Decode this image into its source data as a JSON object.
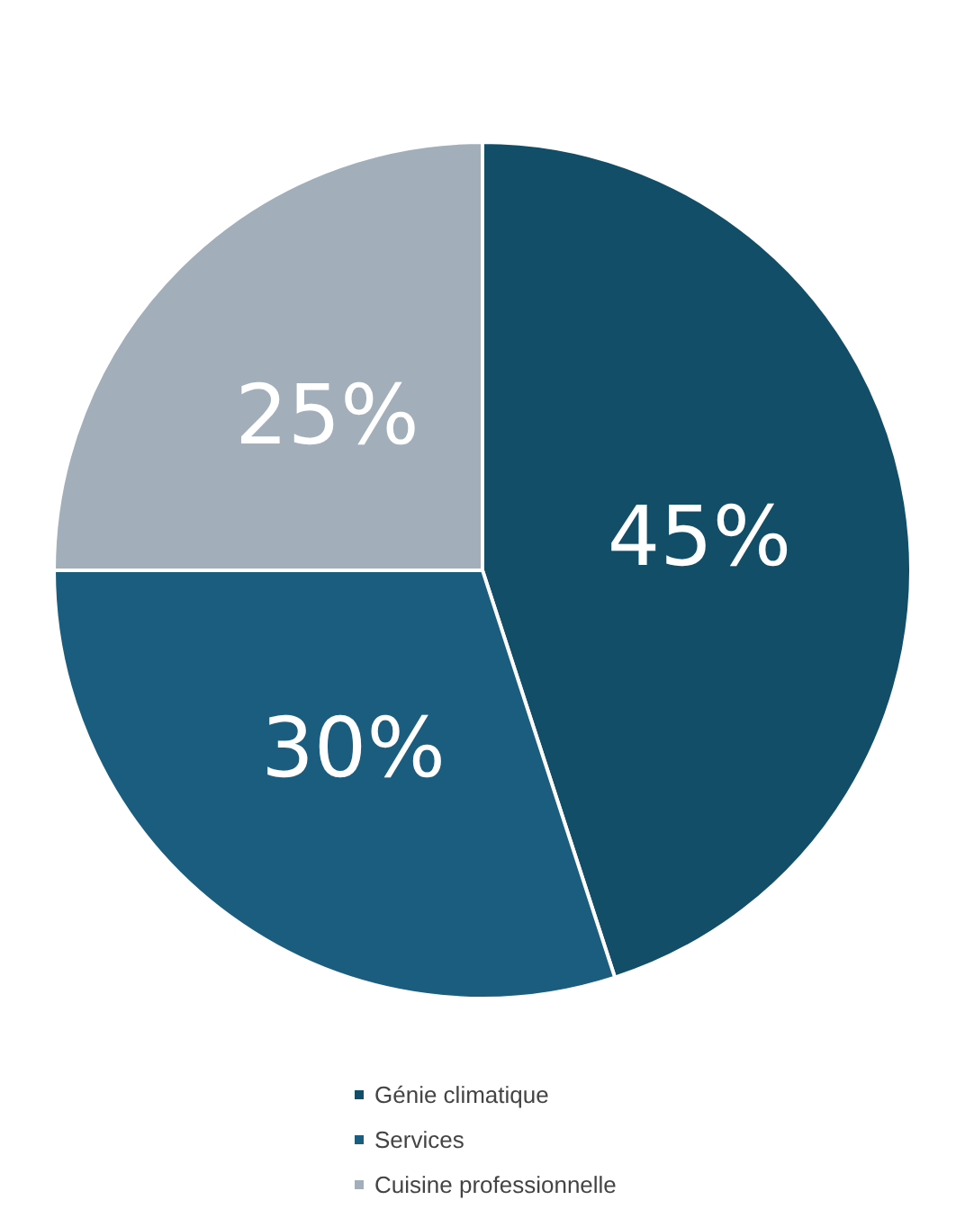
{
  "chart_data": {
    "type": "pie",
    "categories": [
      "Génie climatique",
      "Services",
      "Cuisine professionnelle"
    ],
    "values": [
      45,
      30,
      25
    ],
    "colors": [
      "#124e68",
      "#1b5d7e",
      "#a2afbb"
    ],
    "value_labels": [
      "45%",
      "30%",
      "25%"
    ],
    "legend": "bottom"
  }
}
